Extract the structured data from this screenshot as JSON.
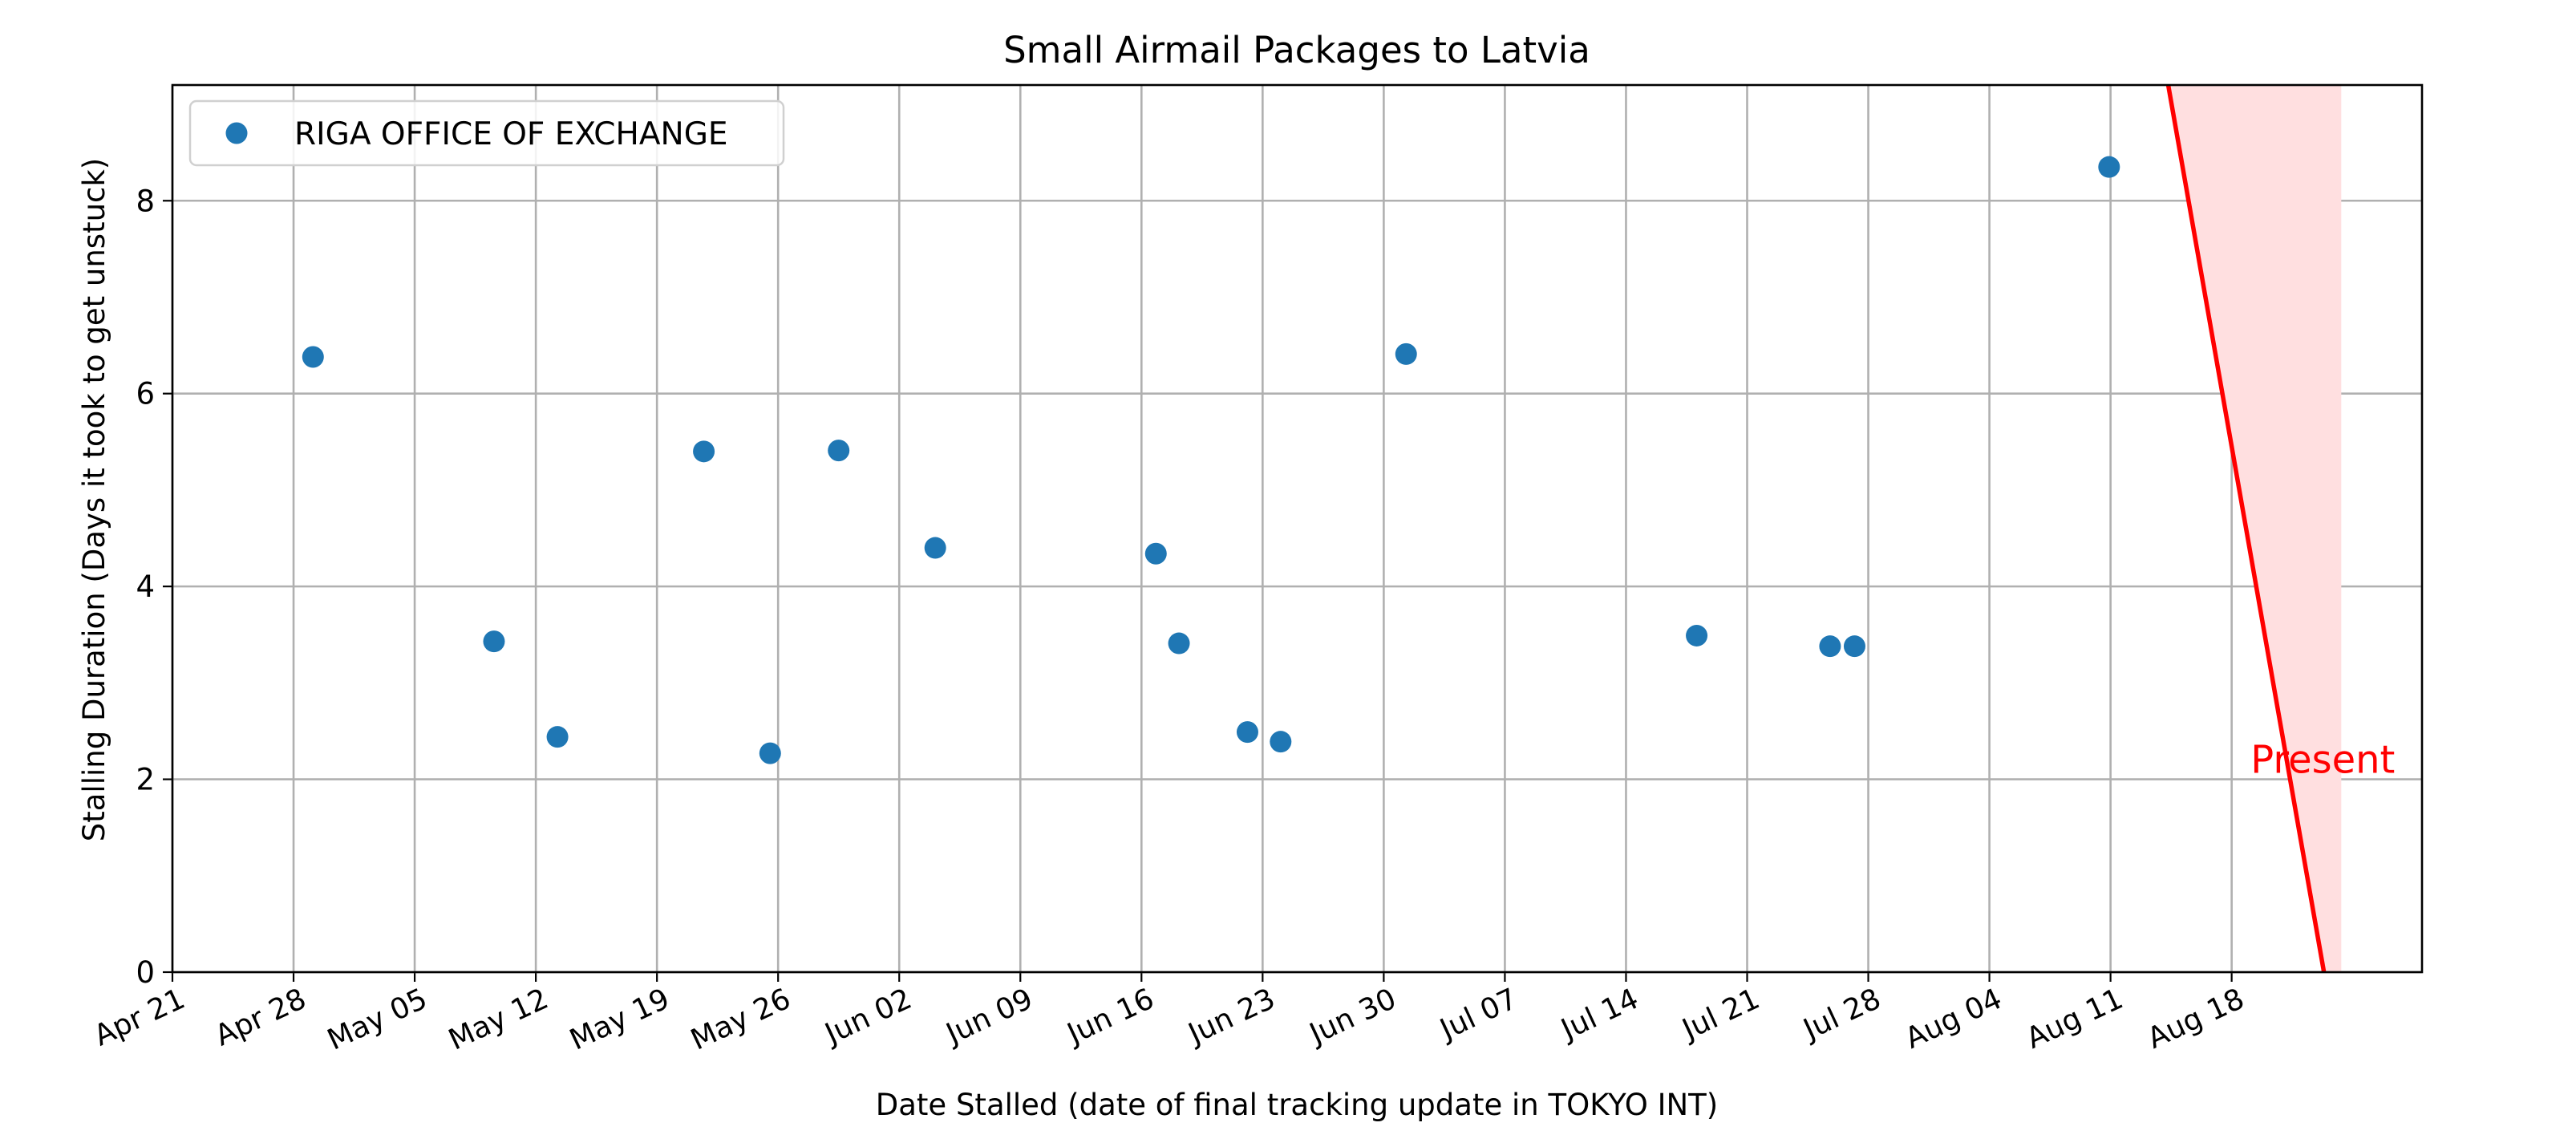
{
  "chart_data": {
    "type": "scatter",
    "title": "Small Airmail Packages to Latvia",
    "xlabel": "Date Stalled (date of final tracking update in TOKYO INT)",
    "ylabel": "Stalling Duration (Days it took to get unstuck)",
    "ylim": [
      0,
      9.2
    ],
    "xlim": [
      "2024-04-21",
      "2024-08-29"
    ],
    "x_ticks": [
      {
        "date": "2024-04-21",
        "label": "Apr 21"
      },
      {
        "date": "2024-04-28",
        "label": "Apr 28"
      },
      {
        "date": "2024-05-05",
        "label": "May 05"
      },
      {
        "date": "2024-05-12",
        "label": "May 12"
      },
      {
        "date": "2024-05-19",
        "label": "May 19"
      },
      {
        "date": "2024-05-26",
        "label": "May 26"
      },
      {
        "date": "2024-06-02",
        "label": "Jun 02"
      },
      {
        "date": "2024-06-09",
        "label": "Jun 09"
      },
      {
        "date": "2024-06-16",
        "label": "Jun 16"
      },
      {
        "date": "2024-06-23",
        "label": "Jun 23"
      },
      {
        "date": "2024-06-30",
        "label": "Jun 30"
      },
      {
        "date": "2024-07-07",
        "label": "Jul 07"
      },
      {
        "date": "2024-07-14",
        "label": "Jul 14"
      },
      {
        "date": "2024-07-21",
        "label": "Jul 21"
      },
      {
        "date": "2024-07-28",
        "label": "Jul 28"
      },
      {
        "date": "2024-08-04",
        "label": "Aug 04"
      },
      {
        "date": "2024-08-11",
        "label": "Aug 11"
      },
      {
        "date": "2024-08-18",
        "label": "Aug 18"
      }
    ],
    "y_ticks": [
      0,
      2,
      4,
      6,
      8
    ],
    "grid": true,
    "legend_position": "top-left",
    "series": [
      {
        "name": "RIGA OFFICE OF EXCHANGE",
        "color": "#1f77b4",
        "points": [
          {
            "x": "2024-04-29 03:00",
            "y": 6.38
          },
          {
            "x": "2024-05-09 14:00",
            "y": 3.43
          },
          {
            "x": "2024-05-13 06:00",
            "y": 2.44
          },
          {
            "x": "2024-05-21 17:00",
            "y": 5.4
          },
          {
            "x": "2024-05-25 13:00",
            "y": 2.27
          },
          {
            "x": "2024-05-29 12:00",
            "y": 5.41
          },
          {
            "x": "2024-06-04 02:00",
            "y": 4.4
          },
          {
            "x": "2024-06-16 20:00",
            "y": 4.34
          },
          {
            "x": "2024-06-18 04:00",
            "y": 3.41
          },
          {
            "x": "2024-06-22 03:00",
            "y": 2.49
          },
          {
            "x": "2024-06-24 01:00",
            "y": 2.39
          },
          {
            "x": "2024-07-01 07:00",
            "y": 6.41
          },
          {
            "x": "2024-07-18 02:00",
            "y": 3.49
          },
          {
            "x": "2024-07-25 19:00",
            "y": 3.38
          },
          {
            "x": "2024-07-27 05:00",
            "y": 3.38
          },
          {
            "x": "2024-08-10 22:00",
            "y": 8.35
          }
        ]
      }
    ],
    "present_line": {
      "label": "Present",
      "color": "#ff0000",
      "from": {
        "x": "2024-08-14 08:00",
        "y": 9.2
      },
      "to": {
        "x": "2024-08-23 08:00",
        "y": 0
      }
    },
    "present_region": {
      "color": "#ffdfe0",
      "x_end": "2024-08-24 08:00"
    }
  }
}
